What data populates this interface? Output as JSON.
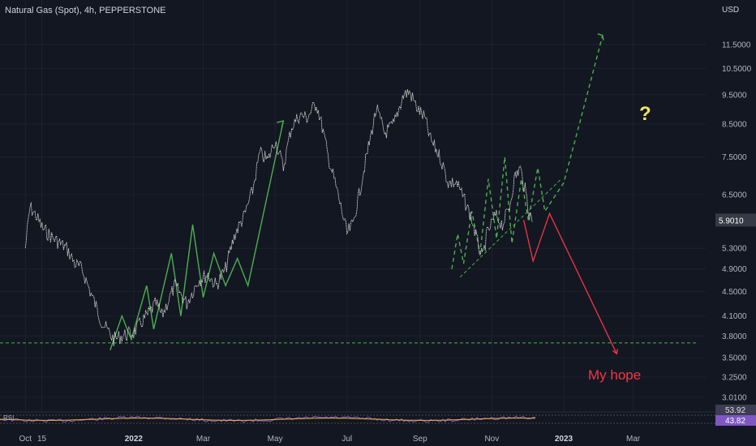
{
  "chart_data": {
    "type": "line",
    "title": "Natural Gas (Spot), 4h, PEPPERSTONE",
    "currency_label": "USD",
    "y_scale": "log",
    "ylim": [
      2.9,
      12.8
    ],
    "y_ticks": [
      "11.5000",
      "10.5000",
      "9.5000",
      "8.5000",
      "7.5000",
      "6.5000",
      "5.3000",
      "4.9000",
      "4.5000",
      "4.1000",
      "3.8000",
      "3.5000",
      "3.2500",
      "3.0100"
    ],
    "x_ticks": [
      {
        "label": "Oct",
        "bold": false
      },
      {
        "label": "15",
        "bold": false
      },
      {
        "label": "2022",
        "bold": true
      },
      {
        "label": "Mar",
        "bold": false
      },
      {
        "label": "May",
        "bold": false
      },
      {
        "label": "Jul",
        "bold": false
      },
      {
        "label": "Sep",
        "bold": false
      },
      {
        "label": "Nov",
        "bold": false
      },
      {
        "label": "2023",
        "bold": true
      },
      {
        "label": "Mar",
        "bold": false
      }
    ],
    "last_price": "5.9010",
    "price_path": [
      [
        "2021-10-01",
        5.3
      ],
      [
        "2021-10-05",
        6.2
      ],
      [
        "2021-10-10",
        6.0
      ],
      [
        "2021-10-16",
        5.7
      ],
      [
        "2021-10-25",
        5.5
      ],
      [
        "2021-11-05",
        5.3
      ],
      [
        "2021-11-12",
        5.0
      ],
      [
        "2021-11-18",
        4.9
      ],
      [
        "2021-11-25",
        4.5
      ],
      [
        "2021-12-05",
        4.0
      ],
      [
        "2021-12-15",
        3.75
      ],
      [
        "2021-12-22",
        3.8
      ],
      [
        "2022-01-01",
        3.85
      ],
      [
        "2022-01-12",
        4.1
      ],
      [
        "2022-01-20",
        4.3
      ],
      [
        "2022-01-25",
        4.1
      ],
      [
        "2022-02-05",
        4.6
      ],
      [
        "2022-02-15",
        4.3
      ],
      [
        "2022-02-25",
        4.7
      ],
      [
        "2022-03-05",
        4.8
      ],
      [
        "2022-03-12",
        4.6
      ],
      [
        "2022-03-20",
        4.9
      ],
      [
        "2022-03-28",
        5.6
      ],
      [
        "2022-04-05",
        6.0
      ],
      [
        "2022-04-12",
        6.6
      ],
      [
        "2022-04-18",
        7.6
      ],
      [
        "2022-04-25",
        7.4
      ],
      [
        "2022-05-01",
        8.0
      ],
      [
        "2022-05-08",
        7.2
      ],
      [
        "2022-05-15",
        8.4
      ],
      [
        "2022-05-22",
        8.8
      ],
      [
        "2022-05-28",
        8.7
      ],
      [
        "2022-06-05",
        9.2
      ],
      [
        "2022-06-10",
        8.4
      ],
      [
        "2022-06-15",
        7.5
      ],
      [
        "2022-06-20",
        6.9
      ],
      [
        "2022-06-25",
        6.3
      ],
      [
        "2022-07-01",
        5.6
      ],
      [
        "2022-07-06",
        5.8
      ],
      [
        "2022-07-12",
        6.6
      ],
      [
        "2022-07-20",
        7.9
      ],
      [
        "2022-07-26",
        9.0
      ],
      [
        "2022-08-02",
        8.2
      ],
      [
        "2022-08-10",
        8.5
      ],
      [
        "2022-08-18",
        9.5
      ],
      [
        "2022-08-23",
        9.6
      ],
      [
        "2022-08-30",
        9.0
      ],
      [
        "2022-09-05",
        8.7
      ],
      [
        "2022-09-10",
        8.0
      ],
      [
        "2022-09-18",
        7.5
      ],
      [
        "2022-09-25",
        6.8
      ],
      [
        "2022-10-02",
        6.8
      ],
      [
        "2022-10-08",
        6.4
      ],
      [
        "2022-10-14",
        6.0
      ],
      [
        "2022-10-20",
        5.4
      ],
      [
        "2022-10-24",
        5.1
      ],
      [
        "2022-10-28",
        5.6
      ],
      [
        "2022-11-04",
        6.0
      ],
      [
        "2022-11-10",
        5.8
      ],
      [
        "2022-11-16",
        6.2
      ],
      [
        "2022-11-20",
        6.9
      ],
      [
        "2022-11-25",
        7.2
      ],
      [
        "2022-11-30",
        6.5
      ],
      [
        "2022-12-03",
        6.0
      ],
      [
        "2022-12-06",
        5.9
      ]
    ],
    "annotations": {
      "hope_label": "My hope",
      "question_mark": "?",
      "support_level": 3.7,
      "colors": {
        "up_path": "#4caf50",
        "down_path": "#f23645",
        "forecast": "#4caf50",
        "question": "#f5e663",
        "rsi_line": "#7e57c2",
        "rsi_ma": "#f5b942"
      }
    },
    "rsi": {
      "label": "RSI",
      "value": "53.92",
      "ma_value": "43.82"
    }
  }
}
